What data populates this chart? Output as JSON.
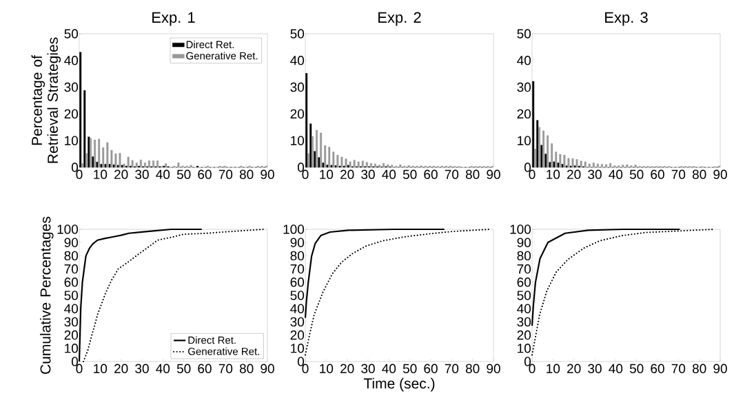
{
  "chart_data": [
    {
      "type": "bar",
      "title": "Exp. 1",
      "ylabel": "Percentage of Retrieval Strategies",
      "x": [
        1,
        3,
        5,
        7,
        9,
        11,
        13,
        15,
        17,
        19,
        21,
        23,
        25,
        27,
        29,
        31,
        33,
        35,
        37,
        39,
        41,
        43,
        45,
        47,
        49,
        51,
        53,
        55,
        57,
        59,
        61,
        63,
        65,
        67,
        69,
        71,
        73,
        75,
        77,
        79,
        81,
        83,
        85,
        87,
        89
      ],
      "xlim": [
        0,
        90
      ],
      "ylim": [
        0,
        50
      ],
      "xticks": [
        0,
        10,
        20,
        30,
        40,
        50,
        60,
        70,
        80,
        90
      ],
      "yticks": [
        0,
        10,
        20,
        30,
        40,
        50
      ],
      "legend": "top right",
      "series": [
        {
          "name": "Direct Ret.",
          "color": "#000000",
          "values": [
            43.1,
            28.8,
            11.4,
            4.0,
            2.0,
            1.2,
            1.2,
            1.2,
            1.0,
            0.8,
            0.8,
            0.5,
            0.5,
            0.3,
            0.5,
            0.3,
            0.3,
            0.3,
            0.3,
            0.3,
            0.5,
            0.3,
            0,
            0,
            0,
            0,
            0,
            0,
            0.5,
            0,
            0,
            0,
            0,
            0,
            0,
            0,
            0,
            0,
            0,
            0,
            0,
            0,
            0,
            0,
            0
          ]
        },
        {
          "name": "Generative Ret.",
          "color": "#999999",
          "values": [
            1.5,
            5.2,
            10.9,
            10.3,
            10.6,
            7.4,
            9.3,
            6.4,
            5.1,
            5.3,
            1.3,
            3.9,
            2.6,
            1.7,
            2.8,
            1.7,
            2.5,
            2.5,
            2.5,
            0.4,
            1.4,
            0.2,
            0.5,
            1.7,
            0.5,
            0.5,
            0.8,
            0,
            0,
            0,
            0.5,
            0,
            0,
            0.5,
            0.5,
            0,
            0,
            0,
            0.5,
            0,
            0.5,
            0,
            0.5,
            0.5,
            0.5
          ]
        }
      ]
    },
    {
      "type": "bar",
      "title": "Exp. 2",
      "x": [
        1,
        3,
        5,
        7,
        9,
        11,
        13,
        15,
        17,
        19,
        21,
        23,
        25,
        27,
        29,
        31,
        33,
        35,
        37,
        39,
        41,
        43,
        45,
        47,
        49,
        51,
        53,
        55,
        57,
        59,
        61,
        63,
        65,
        67,
        69,
        71,
        73,
        75,
        77,
        79,
        81,
        83,
        85,
        87,
        89
      ],
      "xlim": [
        0,
        90
      ],
      "ylim": [
        0,
        50
      ],
      "xticks": [
        0,
        10,
        20,
        30,
        40,
        50,
        60,
        70,
        80,
        90
      ],
      "yticks": [
        0,
        10,
        20,
        30,
        40,
        50
      ],
      "series": [
        {
          "color": "#000000",
          "values": [
            35.2,
            16.3,
            6.0,
            3.7,
            1.7,
            0.9,
            0.8,
            0.7,
            0.5,
            0.5,
            0.8,
            0.3,
            0.3,
            0.3,
            0.3,
            0.3,
            0.3,
            0.3,
            0.2,
            0.3,
            0.2,
            0,
            0,
            0,
            0,
            0,
            0,
            0,
            0,
            0,
            0,
            0,
            0,
            0,
            0,
            0,
            0,
            0,
            0,
            0,
            0,
            0,
            0,
            0,
            0
          ]
        },
        {
          "color": "#999999",
          "values": [
            5.2,
            11.6,
            13.9,
            12.9,
            8.2,
            7.6,
            5.8,
            4.6,
            3.9,
            3.2,
            2.1,
            2.7,
            2.1,
            2.4,
            1.9,
            1.5,
            1.3,
            0.9,
            1.5,
            1.0,
            0.9,
            0.5,
            1.0,
            0.5,
            0.7,
            0.5,
            0.5,
            0.6,
            0.5,
            0.5,
            0.5,
            0.4,
            0.5,
            0.5,
            0.5,
            0.4,
            0.4,
            0,
            0,
            0.4,
            0.4,
            0.4,
            0.4,
            0.4,
            0.4
          ]
        }
      ]
    },
    {
      "type": "bar",
      "title": "Exp. 3",
      "x": [
        1,
        3,
        5,
        7,
        9,
        11,
        13,
        15,
        17,
        19,
        21,
        23,
        25,
        27,
        29,
        31,
        33,
        35,
        37,
        39,
        41,
        43,
        45,
        47,
        49,
        51,
        53,
        55,
        57,
        59,
        61,
        63,
        65,
        67,
        69,
        71,
        73,
        75,
        77,
        79,
        81,
        83,
        85,
        87,
        89
      ],
      "xlim": [
        0,
        90
      ],
      "ylim": [
        0,
        50
      ],
      "xticks": [
        0,
        10,
        20,
        30,
        40,
        50,
        60,
        70,
        80,
        90
      ],
      "yticks": [
        0,
        10,
        20,
        30,
        40,
        50
      ],
      "series": [
        {
          "color": "#000000",
          "values": [
            32.2,
            17.6,
            8.3,
            5.0,
            1.9,
            2.1,
            1.7,
            1.2,
            0.6,
            0.5,
            0.6,
            0.5,
            0.3,
            0,
            0,
            0,
            0,
            0,
            0,
            0,
            0,
            0,
            0,
            0,
            0,
            0,
            0,
            0,
            0,
            0,
            0,
            0,
            0,
            0,
            0,
            0,
            0,
            0,
            0,
            0,
            0,
            0,
            0,
            0,
            0
          ]
        },
        {
          "color": "#999999",
          "values": [
            6.9,
            15.0,
            13.7,
            11.9,
            8.9,
            5.8,
            4.9,
            4.6,
            3.4,
            3.3,
            3.0,
            2.4,
            2.1,
            1.3,
            1.7,
            1.3,
            1.2,
            1.1,
            1.5,
            0.6,
            0.6,
            0.9,
            1.0,
            0.6,
            0.9,
            0.4,
            0.4,
            0.4,
            0.4,
            0.4,
            0.4,
            0.4,
            0.4,
            0,
            0,
            0.4,
            0.4,
            0.4,
            0.4,
            0,
            0.3,
            0,
            0,
            0.3,
            0.5
          ]
        }
      ]
    },
    {
      "type": "line",
      "ylabel": "Cumulative Percentages",
      "xlim": [
        0,
        90
      ],
      "ylim": [
        0,
        100
      ],
      "xticks": [
        0,
        10,
        20,
        30,
        40,
        50,
        60,
        70,
        80,
        90
      ],
      "yticks": [
        0,
        10,
        20,
        30,
        40,
        50,
        60,
        70,
        80,
        90,
        100
      ],
      "legend": "bottom right",
      "series": [
        {
          "name": "Direct Ret.",
          "color": "#000000",
          "line_style": "solid",
          "x": [
            0,
            0.7,
            1.5,
            2.5,
            3.2,
            4.9,
            6.5,
            8.7,
            12,
            16.5,
            20,
            23.7,
            30,
            35.3,
            44,
            58.6
          ],
          "values": [
            0,
            40,
            60,
            72,
            80,
            85.7,
            89,
            91.8,
            93,
            94.4,
            95.5,
            97,
            98,
            98.8,
            100,
            100
          ]
        },
        {
          "name": "Generative Ret.",
          "color": "#000000",
          "line_style": "dotted",
          "x": [
            2,
            4,
            6,
            7.5,
            8.7,
            12.6,
            15.4,
            18.7,
            23.4,
            28.1,
            33.1,
            37.5,
            45.3,
            49.7,
            60.8,
            71.9,
            88.5
          ],
          "values": [
            0,
            8,
            20,
            28,
            35.3,
            51.8,
            61.4,
            70.1,
            75.3,
            80.9,
            86.6,
            91.8,
            94.4,
            96.2,
            97,
            98.3,
            100
          ]
        }
      ]
    },
    {
      "type": "line",
      "xlabel": "Time (sec.)",
      "xlim": [
        0,
        90
      ],
      "ylim": [
        0,
        100
      ],
      "xticks": [
        0,
        10,
        20,
        30,
        40,
        50,
        60,
        70,
        80,
        90
      ],
      "yticks": [
        0,
        10,
        20,
        30,
        40,
        50,
        60,
        70,
        80,
        90,
        100
      ],
      "series": [
        {
          "color": "#000000",
          "line_style": "solid",
          "x": [
            0,
            0.5,
            1.4,
            3.0,
            4.7,
            7.4,
            11.8,
            20.6,
            42.5,
            66.5
          ],
          "values": [
            33,
            45,
            59.7,
            79.7,
            89.2,
            95.3,
            97.9,
            99.3,
            100,
            100
          ]
        },
        {
          "color": "#000000",
          "line_style": "dotted",
          "x": [
            0,
            2,
            4.2,
            8.5,
            12.9,
            17.3,
            22.8,
            29.3,
            37,
            47.9,
            58.9,
            69.9,
            88.4
          ],
          "values": [
            5,
            20,
            35.3,
            52.7,
            66.3,
            75,
            81.9,
            87.5,
            91.3,
            94.4,
            96.5,
            98.3,
            100
          ]
        }
      ]
    },
    {
      "type": "line",
      "xlim": [
        0,
        90
      ],
      "ylim": [
        0,
        100
      ],
      "xticks": [
        0,
        10,
        20,
        30,
        40,
        50,
        60,
        70,
        80,
        90
      ],
      "yticks": [
        0,
        10,
        20,
        30,
        40,
        50,
        60,
        70,
        80,
        90,
        100
      ],
      "series": [
        {
          "color": "#000000",
          "line_style": "solid",
          "x": [
            0,
            0.6,
            1.6,
            3.8,
            7.6,
            15.8,
            26.8,
            43.3,
            70.7
          ],
          "values": [
            27,
            42,
            59.7,
            77.9,
            90.1,
            97,
            99.3,
            100,
            100
          ]
        },
        {
          "color": "#000000",
          "line_style": "dotted",
          "x": [
            0,
            1.8,
            3.6,
            7.1,
            11.5,
            17,
            24.7,
            32.4,
            43.4,
            54.4,
            70.9,
            87.4
          ],
          "values": [
            5,
            20,
            35.3,
            53.6,
            67.5,
            77,
            85.7,
            91.3,
            95.3,
            97.6,
            98.8,
            100
          ]
        }
      ]
    }
  ]
}
